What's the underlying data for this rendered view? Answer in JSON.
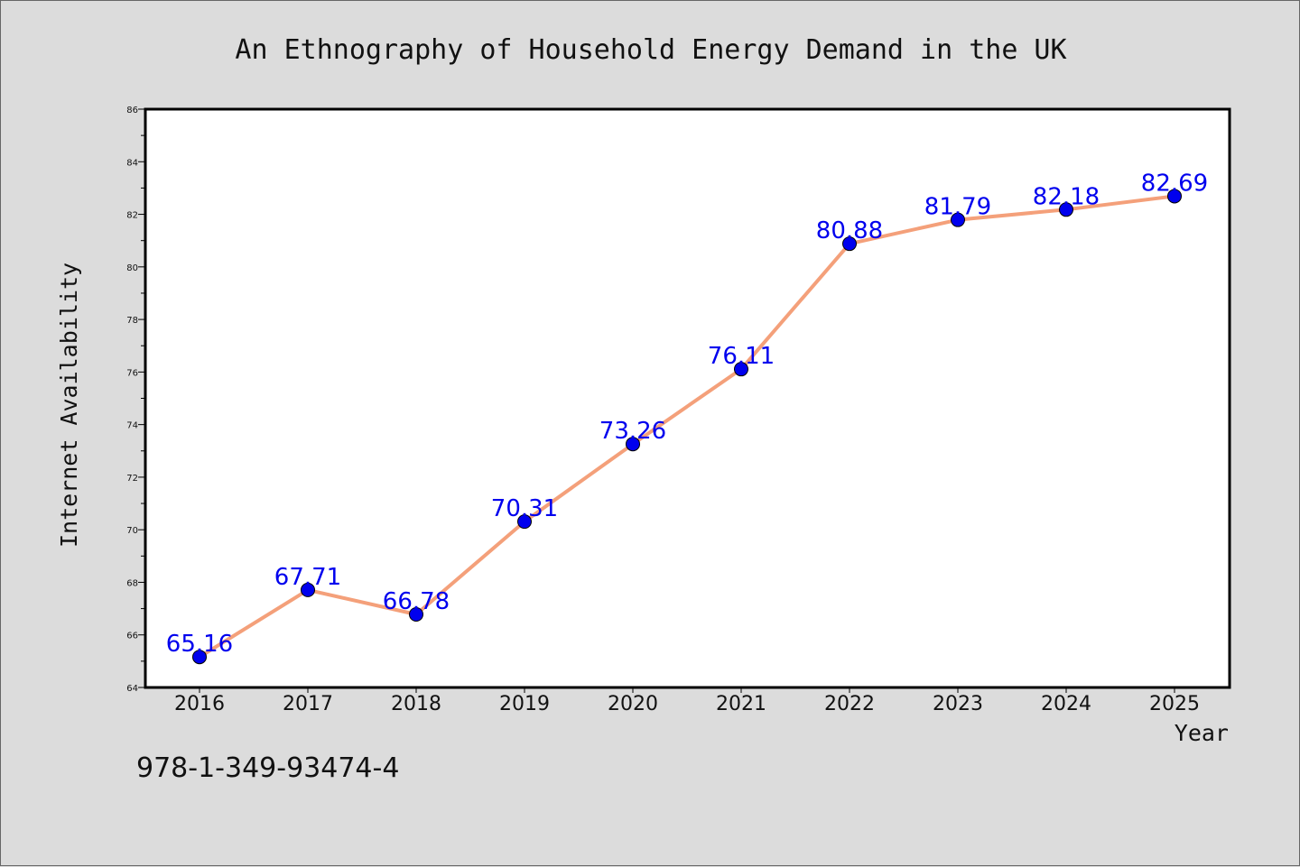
{
  "chart_data": {
    "type": "line",
    "title": "An Ethnography of Household Energy Demand in the UK",
    "xlabel": "Year",
    "ylabel": "Internet Availability",
    "categories": [
      "2016",
      "2017",
      "2018",
      "2019",
      "2020",
      "2021",
      "2022",
      "2023",
      "2024",
      "2025"
    ],
    "series": [
      {
        "values": [
          65.16,
          67.71,
          66.78,
          70.31,
          73.26,
          76.11,
          80.88,
          81.79,
          82.18,
          82.69
        ],
        "labels": [
          "65.16",
          "67.71",
          "66.78",
          "70.31",
          "73.26",
          "76.11",
          "80.88",
          "81.79",
          "82.18",
          "82.69"
        ],
        "line_color": "#f4a07a",
        "marker_color": "#0000ee"
      }
    ],
    "ylim": [
      64,
      86
    ],
    "yticks": [
      "64",
      "66",
      "68",
      "70",
      "72",
      "74",
      "76",
      "78",
      "80",
      "82",
      "84",
      "86"
    ],
    "grid": false,
    "legend": "none"
  },
  "footer": {
    "isbn": "978-1-349-93474-4"
  },
  "colors": {
    "background": "#dcdcdc",
    "plot_background": "#ffffff",
    "label_color": "#0000ee"
  }
}
